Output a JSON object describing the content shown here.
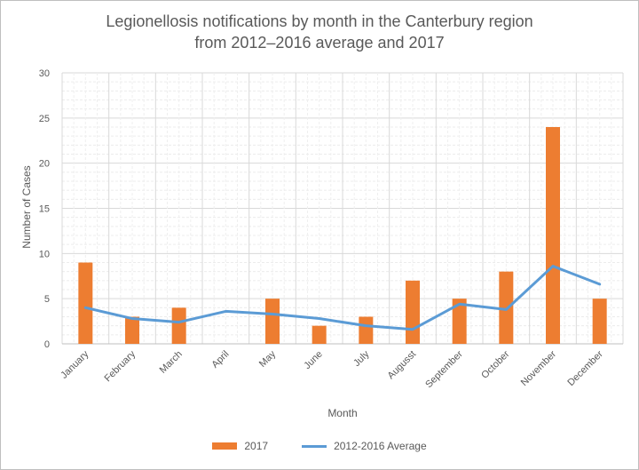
{
  "chart_data": {
    "type": "bar",
    "title_line1": "Legionellosis notifications by month in the Canterbury region",
    "title_line2": "from 2012–2016 average and 2017",
    "xlabel": "Month",
    "ylabel": "Number of Cases",
    "ylim": [
      0,
      30
    ],
    "yticks": [
      "0",
      "5",
      "10",
      "15",
      "20",
      "25",
      "30"
    ],
    "categories": [
      "January",
      "February",
      "March",
      "April",
      "May",
      "June",
      "July",
      "Augusst",
      "September",
      "October",
      "November",
      "December"
    ],
    "series": [
      {
        "name": "2017",
        "kind": "bar",
        "color": "#ED7D31",
        "values": [
          9,
          3,
          4,
          0,
          5,
          2,
          3,
          7,
          5,
          8,
          24,
          5
        ]
      },
      {
        "name": "2012-2016 Average",
        "kind": "line",
        "color": "#5B9BD5",
        "values": [
          4.0,
          2.8,
          2.4,
          3.6,
          3.3,
          2.8,
          2.0,
          1.6,
          4.4,
          3.8,
          8.6,
          6.6
        ]
      }
    ],
    "grid": true,
    "legend_position": "bottom"
  }
}
